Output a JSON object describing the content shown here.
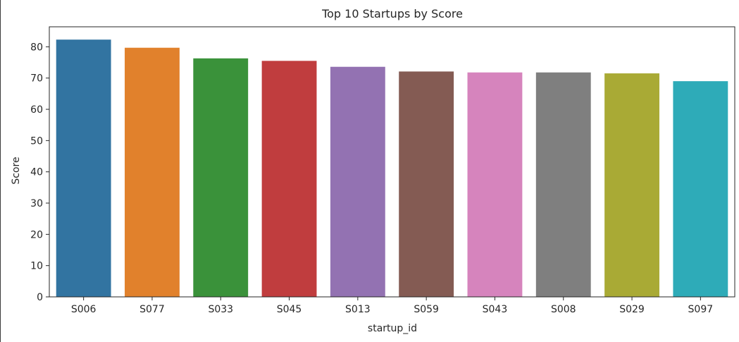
{
  "chart_data": {
    "type": "bar",
    "title": "Top 10 Startups by Score",
    "xlabel": "startup_id",
    "ylabel": "Score",
    "categories": [
      "S006",
      "S077",
      "S033",
      "S045",
      "S013",
      "S059",
      "S043",
      "S008",
      "S029",
      "S097"
    ],
    "values": [
      82.3,
      79.7,
      76.3,
      75.5,
      73.6,
      72.1,
      71.8,
      71.8,
      71.5,
      69.0
    ],
    "colors": [
      "#3274a1",
      "#e1812c",
      "#3a923a",
      "#c03d3e",
      "#9372b2",
      "#845b53",
      "#d684bd",
      "#7f7f7f",
      "#a9aa35",
      "#2eabb8"
    ],
    "ylim": [
      0,
      86.4
    ],
    "yticks": [
      0,
      10,
      20,
      30,
      40,
      50,
      60,
      70,
      80
    ],
    "grid": false,
    "legend": "none"
  }
}
